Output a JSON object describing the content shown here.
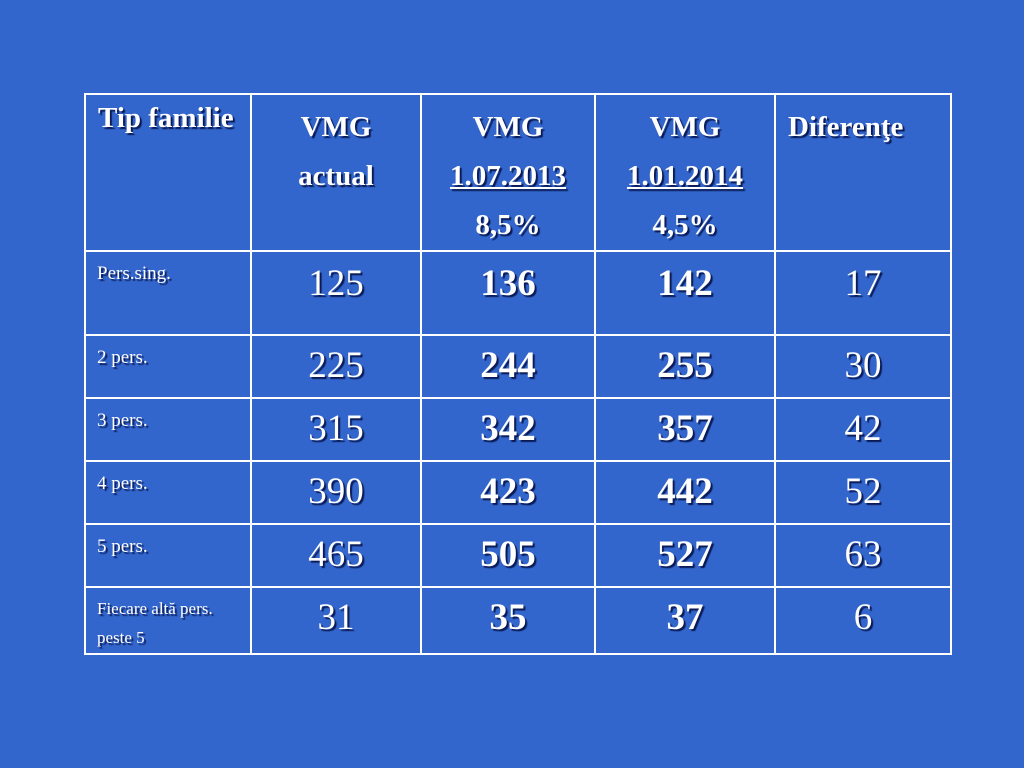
{
  "slide": {
    "background_color": "#3366cc",
    "text_color": "#ffffff"
  },
  "table": {
    "header": {
      "tip": "Tip familie",
      "actual": {
        "line1": "VMG",
        "line2": "actual"
      },
      "vmg2013": {
        "line1": "VMG",
        "line2": "1.07.2013",
        "line3": "8,5%"
      },
      "vmg2014": {
        "line1": "VMG",
        "line2": "1.01.2014",
        "line3": "4,5%"
      },
      "diferente": "Diferenţe"
    },
    "rows": [
      {
        "label": "Pers.sing.",
        "actual": "125",
        "vmg2013": "136",
        "vmg2014": "142",
        "dif": "17"
      },
      {
        "label": "2 pers.",
        "actual": "225",
        "vmg2013": "244",
        "vmg2014": "255",
        "dif": "30"
      },
      {
        "label": "3 pers.",
        "actual": "315",
        "vmg2013": "342",
        "vmg2014": "357",
        "dif": "42"
      },
      {
        "label": "4 pers.",
        "actual": "390",
        "vmg2013": "423",
        "vmg2014": "442",
        "dif": "52"
      },
      {
        "label": "5 pers.",
        "actual": "465",
        "vmg2013": "505",
        "vmg2014": "527",
        "dif": "63"
      },
      {
        "label": "Fiecare altă pers. peste 5",
        "actual": "31",
        "vmg2013": "35",
        "vmg2014": "37",
        "dif": "6"
      }
    ]
  }
}
